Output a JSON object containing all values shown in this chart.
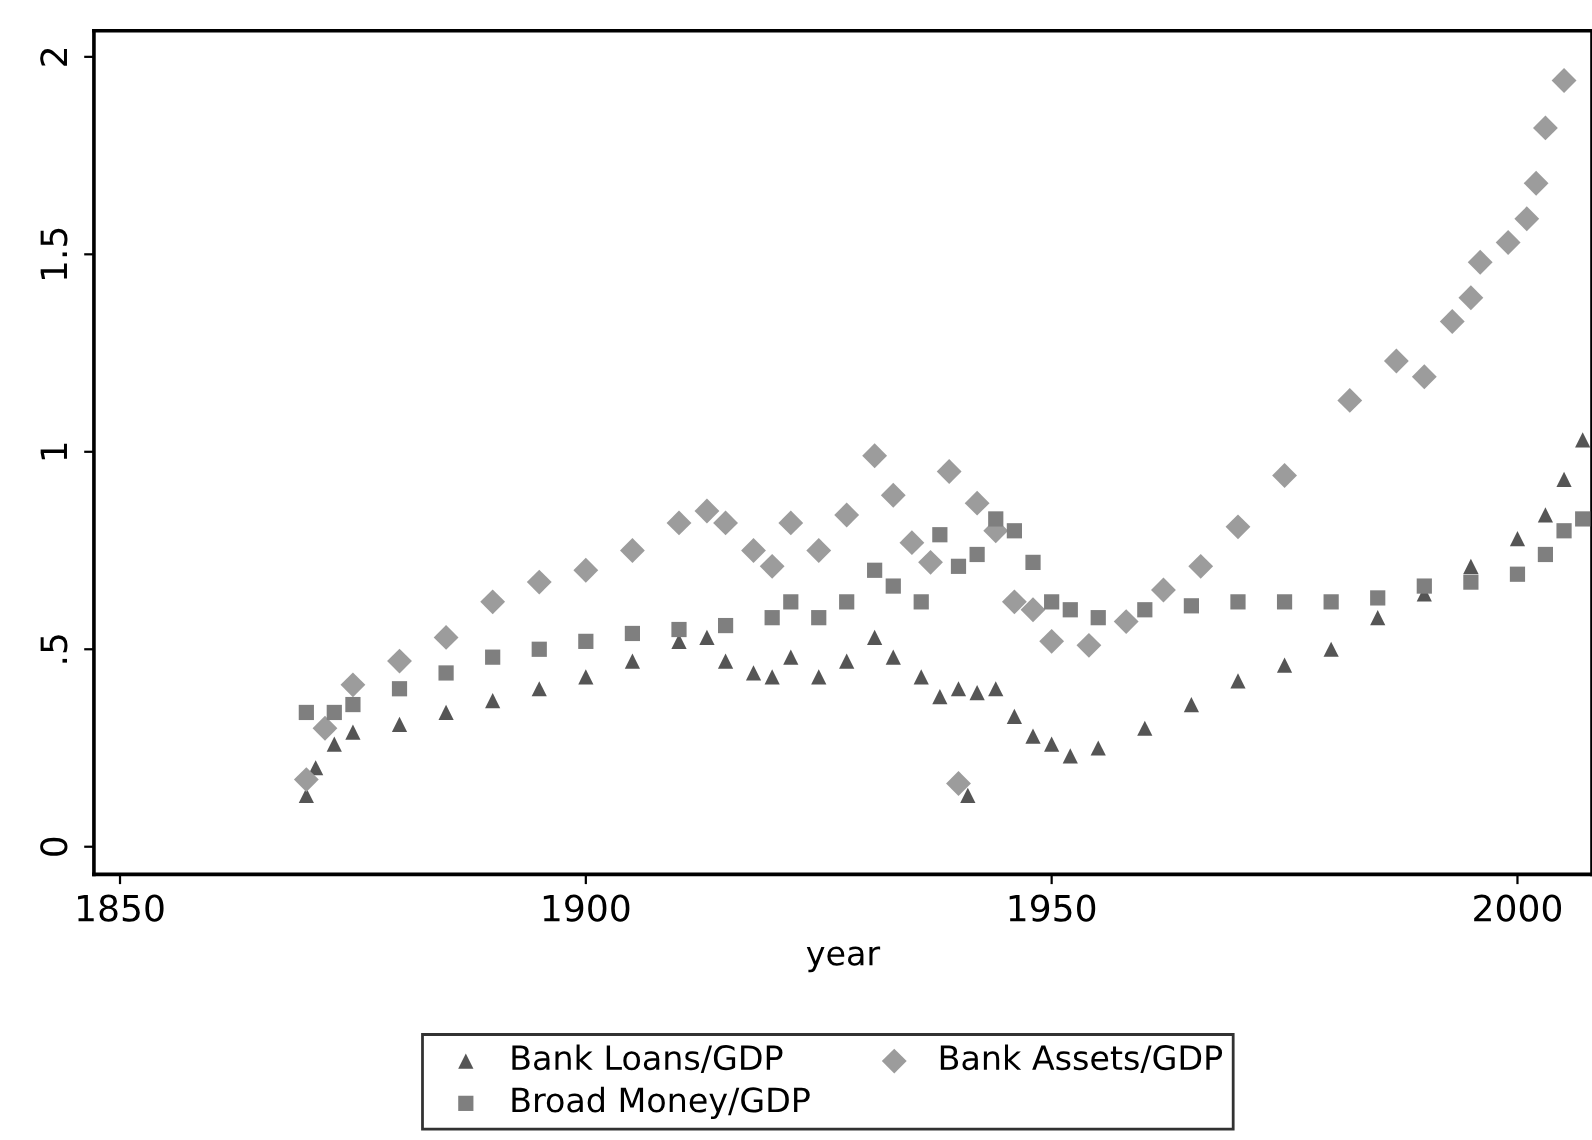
{
  "chart_data": {
    "type": "scatter",
    "xlabel": "year",
    "xlim": [
      1847.2,
      2008
    ],
    "xticks": [
      1850,
      1900,
      1950,
      2000
    ],
    "ylim": [
      -0.07,
      2.066
    ],
    "yticks": [
      0,
      {
        "value": 0.5,
        "label": ".5"
      },
      1,
      {
        "value": 1.5,
        "label": "1.5"
      },
      2
    ],
    "grid": false,
    "legend": "bottom",
    "series": [
      {
        "name": "Bank Loans/GDP",
        "color": "#555555",
        "marker": "triangle",
        "x": [
          1870,
          1871,
          1873,
          1875,
          1880,
          1885,
          1890,
          1895,
          1900,
          1905,
          1910,
          1913,
          1915,
          1918,
          1920,
          1922,
          1925,
          1928,
          1931,
          1933,
          1936,
          1938,
          1940,
          1941,
          1942,
          1944,
          1946,
          1948,
          1950,
          1952,
          1955,
          1960,
          1965,
          1970,
          1975,
          1980,
          1985,
          1990,
          1995,
          2000,
          2003,
          2005,
          2007
        ],
        "values": [
          0.13,
          0.2,
          0.26,
          0.29,
          0.31,
          0.34,
          0.37,
          0.4,
          0.43,
          0.47,
          0.52,
          0.53,
          0.47,
          0.44,
          0.43,
          0.48,
          0.43,
          0.47,
          0.53,
          0.48,
          0.43,
          0.38,
          0.4,
          0.13,
          0.39,
          0.4,
          0.33,
          0.28,
          0.26,
          0.23,
          0.25,
          0.3,
          0.36,
          0.42,
          0.46,
          0.5,
          0.58,
          0.64,
          0.71,
          0.78,
          0.84,
          0.93,
          1.03
        ]
      },
      {
        "name": "Bank Assets/GDP",
        "color": "#9c9c9c",
        "marker": "diamond",
        "x": [
          1870,
          1872,
          1875,
          1880,
          1885,
          1890,
          1895,
          1900,
          1905,
          1910,
          1913,
          1915,
          1918,
          1920,
          1922,
          1925,
          1928,
          1931,
          1933,
          1935,
          1937,
          1939,
          1940,
          1942,
          1944,
          1946,
          1948,
          1950,
          1954,
          1958,
          1962,
          1966,
          1970,
          1975,
          1982,
          1987,
          1990,
          1993,
          1995,
          1996,
          1999,
          2001,
          2002,
          2003,
          2005
        ],
        "values": [
          0.17,
          0.3,
          0.41,
          0.47,
          0.53,
          0.62,
          0.67,
          0.7,
          0.75,
          0.82,
          0.85,
          0.82,
          0.75,
          0.71,
          0.82,
          0.75,
          0.84,
          0.99,
          0.89,
          0.77,
          0.72,
          0.95,
          0.16,
          0.87,
          0.8,
          0.62,
          0.6,
          0.52,
          0.51,
          0.57,
          0.65,
          0.71,
          0.81,
          0.94,
          1.13,
          1.23,
          1.19,
          1.33,
          1.39,
          1.48,
          1.53,
          1.59,
          1.68,
          1.82,
          1.94
        ]
      },
      {
        "name": "Broad Money/GDP",
        "color": "#7f7f7f",
        "marker": "square",
        "x": [
          1870,
          1873,
          1875,
          1880,
          1885,
          1890,
          1895,
          1900,
          1905,
          1910,
          1915,
          1920,
          1922,
          1925,
          1928,
          1931,
          1933,
          1936,
          1938,
          1940,
          1942,
          1944,
          1946,
          1948,
          1950,
          1952,
          1955,
          1960,
          1965,
          1970,
          1975,
          1980,
          1985,
          1990,
          1995,
          2000,
          2003,
          2005,
          2007
        ],
        "values": [
          0.34,
          0.34,
          0.36,
          0.4,
          0.44,
          0.48,
          0.5,
          0.52,
          0.54,
          0.55,
          0.56,
          0.58,
          0.62,
          0.58,
          0.62,
          0.7,
          0.66,
          0.62,
          0.79,
          0.71,
          0.74,
          0.83,
          0.8,
          0.72,
          0.62,
          0.6,
          0.58,
          0.6,
          0.61,
          0.62,
          0.62,
          0.62,
          0.63,
          0.66,
          0.67,
          0.69,
          0.74,
          0.8,
          0.83
        ]
      }
    ]
  }
}
